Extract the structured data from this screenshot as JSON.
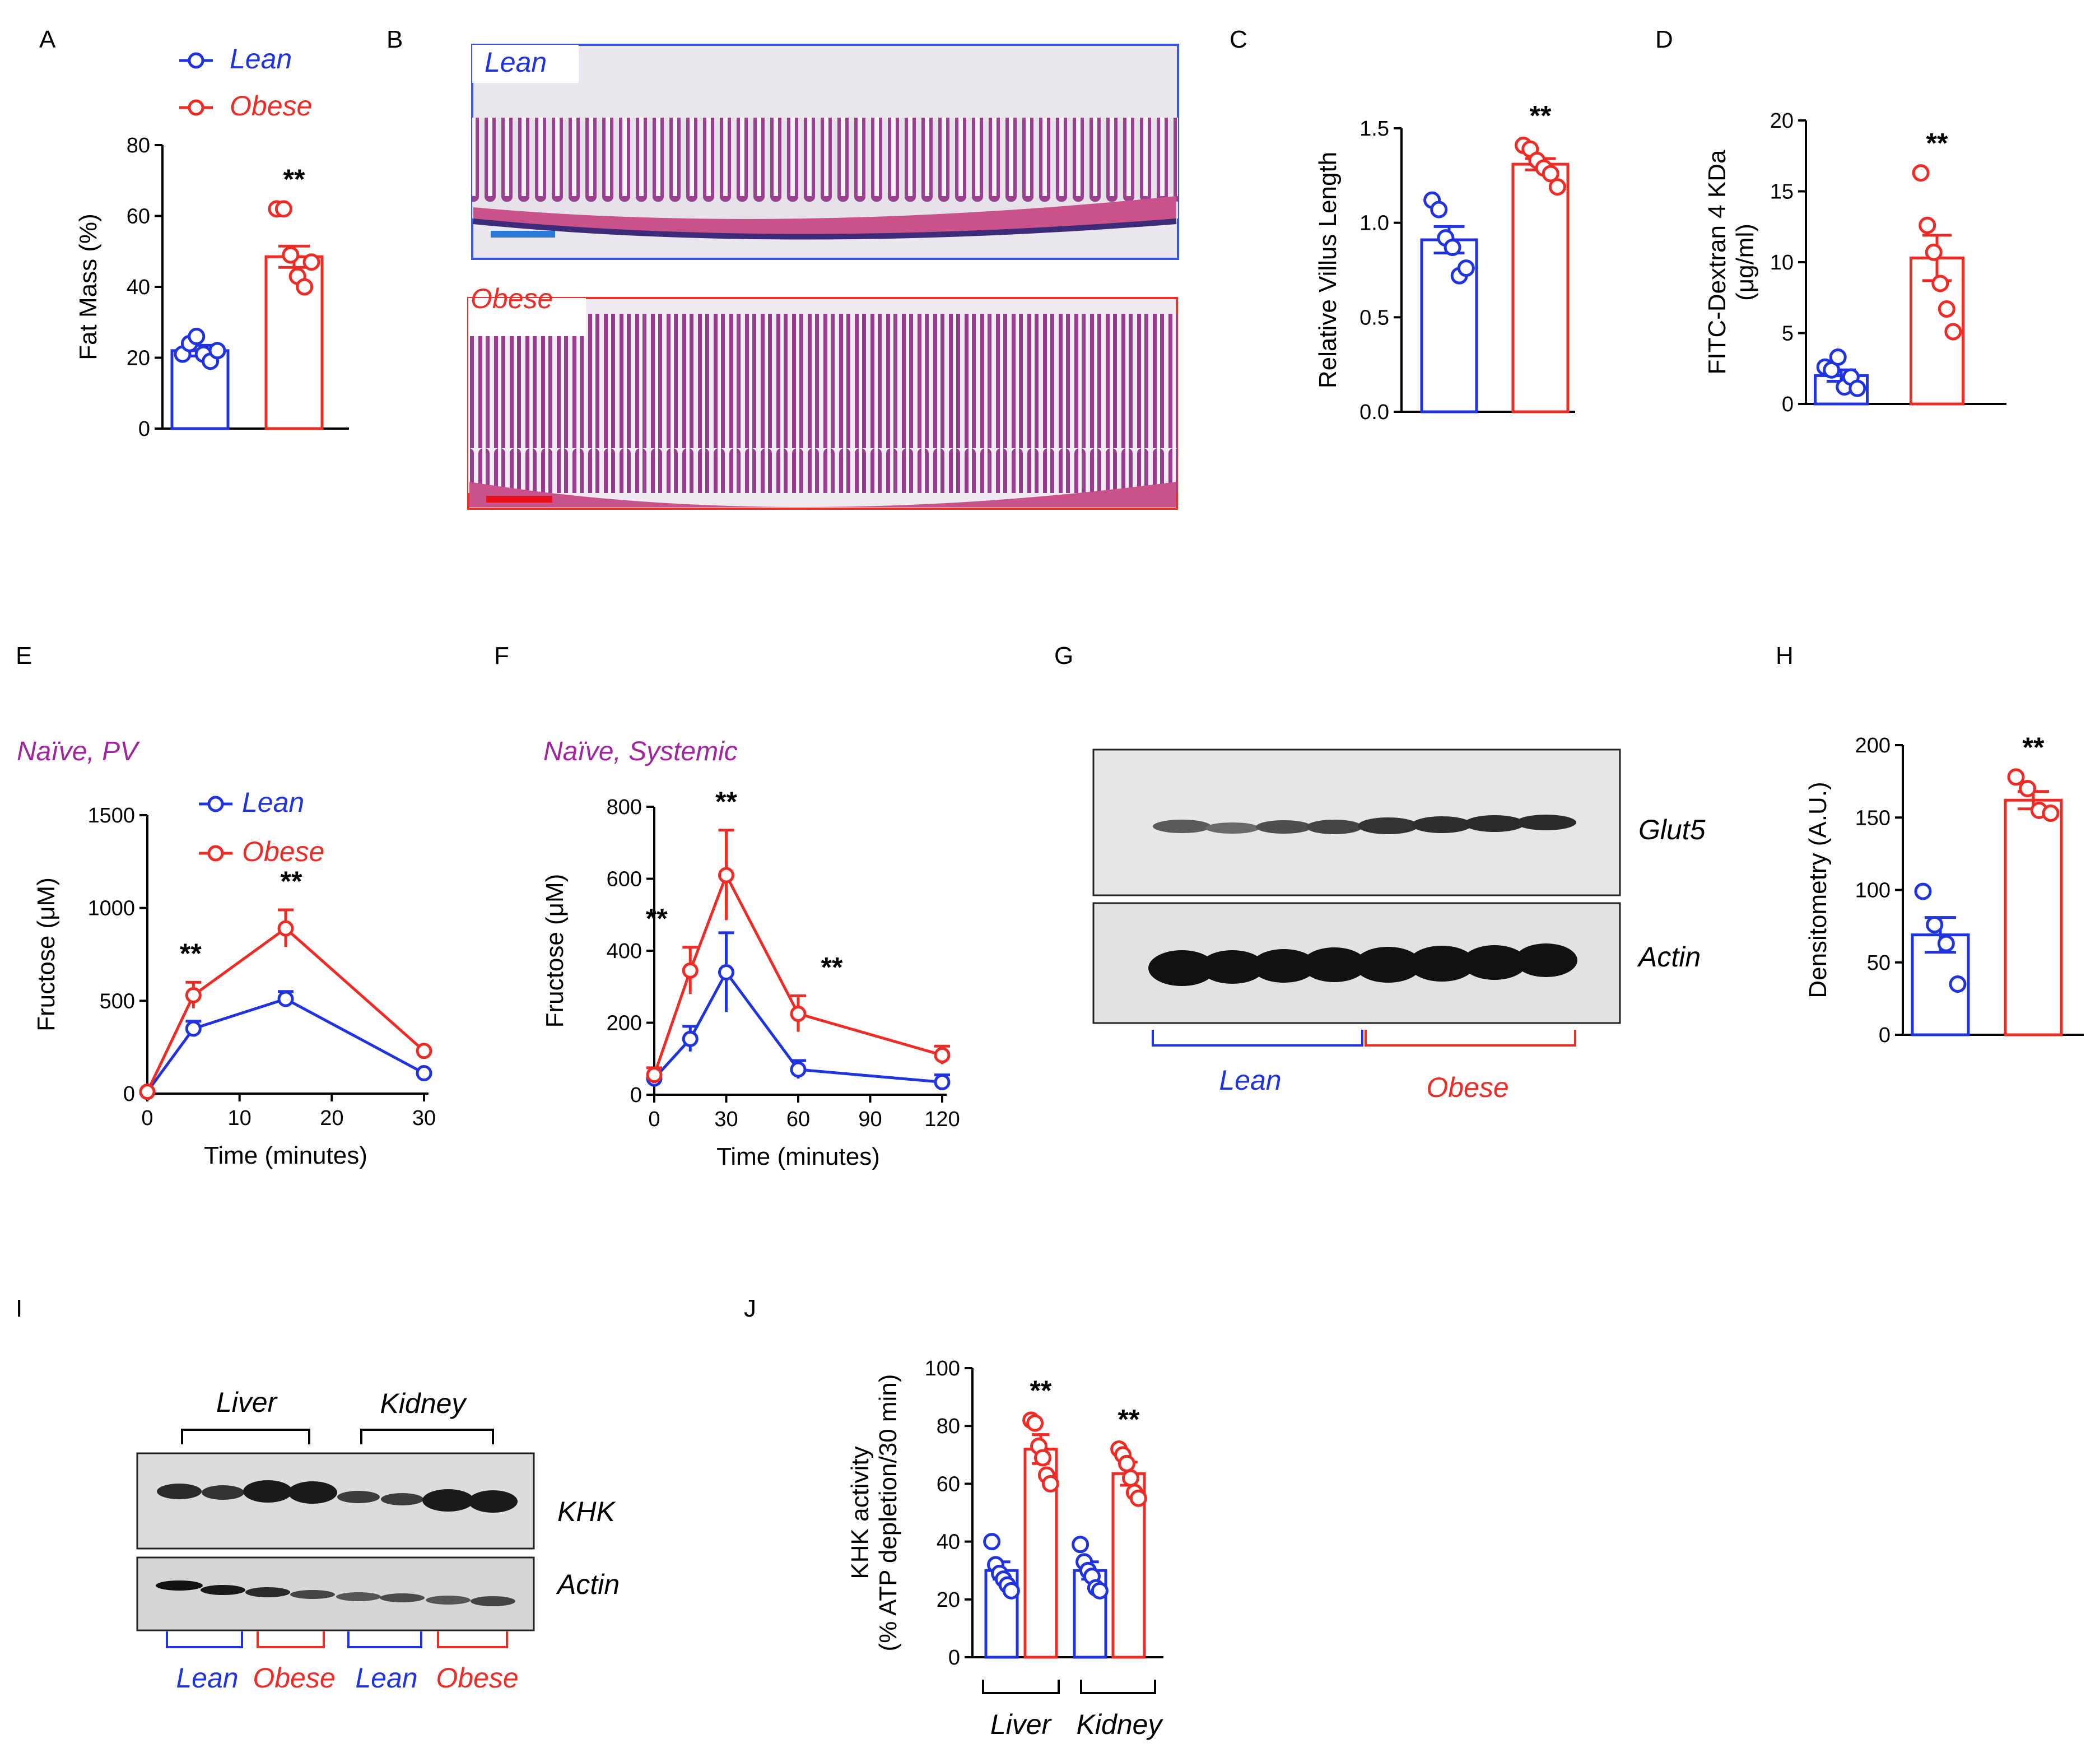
{
  "colors": {
    "lean": "#1f33e0",
    "obese": "#ee2b24",
    "naive": "#a1259f",
    "scale_lean": "#2a7ad6",
    "scale_obese": "#e8101a"
  },
  "legend": {
    "lean": "Lean",
    "obese": "Obese"
  },
  "chart_data": [
    {
      "id": "A",
      "type": "bar",
      "panel_label": "A",
      "ylabel": "Fat Mass (%)",
      "ylim": [
        0,
        80
      ],
      "yticks": [
        0,
        20,
        40,
        60,
        80
      ],
      "categories": [
        "Lean",
        "Obese"
      ],
      "values": [
        22,
        48.5
      ],
      "errors": [
        1.5,
        3
      ],
      "points": [
        [
          21,
          24,
          26,
          21,
          19,
          22
        ],
        [
          62,
          62,
          49,
          43,
          40,
          47
        ]
      ],
      "significance": [
        "",
        "**"
      ]
    },
    {
      "id": "C",
      "type": "bar",
      "panel_label": "C",
      "ylabel": "Relative Villus Length",
      "ylim": [
        0,
        1.5
      ],
      "yticks": [
        "0.0",
        "0.5",
        "1.0",
        "1.5"
      ],
      "categories": [
        "Lean",
        "Obese"
      ],
      "values": [
        0.91,
        1.31
      ],
      "errors": [
        0.07,
        0.03
      ],
      "points": [
        [
          1.12,
          1.07,
          0.92,
          0.87,
          0.72,
          0.76
        ],
        [
          1.41,
          1.39,
          1.33,
          1.29,
          1.26,
          1.19
        ]
      ],
      "significance": [
        "",
        "**"
      ]
    },
    {
      "id": "D",
      "type": "bar",
      "panel_label": "D",
      "ylabel": "FITC-Dextran 4 KDa",
      "ylabel2": "(μg/ml)",
      "ylim": [
        0,
        20
      ],
      "yticks": [
        0,
        5,
        10,
        15,
        20
      ],
      "categories": [
        "Lean",
        "Obese"
      ],
      "values": [
        2,
        10.3
      ],
      "errors": [
        0.4,
        1.6
      ],
      "points": [
        [
          2.6,
          2.4,
          3.3,
          1.2,
          1.9,
          1.1
        ],
        [
          16.3,
          12.6,
          10.7,
          8.5,
          6.7,
          5.1
        ]
      ],
      "significance": [
        "",
        "**"
      ]
    },
    {
      "id": "E",
      "type": "line",
      "panel_label": "E",
      "subtitle": "Naïve, PV",
      "xlabel": "Time (minutes)",
      "ylabel": "Fructose (μM)",
      "xlim": [
        0,
        30
      ],
      "ylim": [
        0,
        1500
      ],
      "xticks": [
        0,
        10,
        20,
        30
      ],
      "yticks": [
        0,
        500,
        1000,
        1500
      ],
      "series": [
        {
          "name": "Lean",
          "x": [
            0,
            5,
            15,
            30
          ],
          "y": [
            10,
            350,
            510,
            110
          ],
          "err": [
            0,
            40,
            40,
            0
          ]
        },
        {
          "name": "Obese",
          "x": [
            0,
            5,
            15,
            30
          ],
          "y": [
            10,
            530,
            890,
            230
          ],
          "err": [
            0,
            70,
            100,
            0
          ]
        }
      ],
      "annotations": [
        {
          "x": 5,
          "text": "**"
        },
        {
          "x": 15,
          "text": "**"
        }
      ]
    },
    {
      "id": "F",
      "type": "line",
      "panel_label": "F",
      "subtitle": "Naïve, Systemic",
      "xlabel": "Time (minutes)",
      "ylabel": "Fructose (μM)",
      "xlim": [
        0,
        120
      ],
      "ylim": [
        0,
        800
      ],
      "xticks": [
        0,
        30,
        60,
        90,
        120
      ],
      "yticks": [
        0,
        200,
        400,
        600,
        800
      ],
      "series": [
        {
          "name": "Lean",
          "x": [
            0,
            15,
            30,
            60,
            120
          ],
          "y": [
            45,
            155,
            340,
            70,
            35
          ],
          "err": [
            10,
            35,
            110,
            25,
            20
          ]
        },
        {
          "name": "Obese",
          "x": [
            0,
            15,
            30,
            60,
            120
          ],
          "y": [
            55,
            345,
            610,
            225,
            110
          ],
          "err": [
            20,
            65,
            125,
            50,
            25
          ]
        }
      ],
      "annotations": [
        {
          "x": 15,
          "text": "**"
        },
        {
          "x": 30,
          "text": "**"
        },
        {
          "x": 60,
          "text": "**"
        }
      ]
    },
    {
      "id": "H",
      "type": "bar",
      "panel_label": "H",
      "ylabel": "Densitometry (A.U.)",
      "ylim": [
        0,
        200
      ],
      "yticks": [
        0,
        50,
        100,
        150,
        200
      ],
      "categories": [
        "Lean",
        "Obese"
      ],
      "values": [
        69,
        162
      ],
      "errors": [
        12,
        6
      ],
      "points": [
        [
          99,
          76,
          63,
          35
        ],
        [
          178,
          170,
          155,
          153
        ]
      ],
      "significance": [
        "",
        "**"
      ]
    },
    {
      "id": "J",
      "type": "bar",
      "panel_label": "J",
      "ylabel": "KHK activity",
      "ylabel2": "(% ATP depletion/30 min)",
      "ylim": [
        0,
        100
      ],
      "yticks": [
        0,
        20,
        40,
        60,
        80,
        100
      ],
      "groups": [
        "Liver",
        "Kidney"
      ],
      "categories": [
        "Lean",
        "Obese",
        "Lean",
        "Obese"
      ],
      "values": [
        30,
        72,
        30,
        63.5
      ],
      "errors": [
        3,
        5,
        3,
        4
      ],
      "points": [
        [
          40,
          32,
          29,
          27,
          25,
          23
        ],
        [
          82,
          81,
          73,
          69,
          63,
          60
        ],
        [
          39,
          33,
          30,
          28,
          24,
          23
        ],
        [
          72,
          70,
          67,
          62,
          57,
          55
        ]
      ],
      "significance": [
        "",
        "**",
        "",
        "**"
      ]
    }
  ],
  "histology": {
    "panel_label": "B",
    "lean_label": "Lean",
    "obese_label": "Obese"
  },
  "blot_g": {
    "panel_label": "G",
    "band1": "Glut5",
    "band2": "Actin",
    "group1": "Lean",
    "group2": "Obese"
  },
  "blot_i": {
    "panel_label": "I",
    "tissue1": "Liver",
    "tissue2": "Kidney",
    "band1": "KHK",
    "band2": "Actin",
    "groups": [
      "Lean",
      "Obese",
      "Lean",
      "Obese"
    ]
  }
}
